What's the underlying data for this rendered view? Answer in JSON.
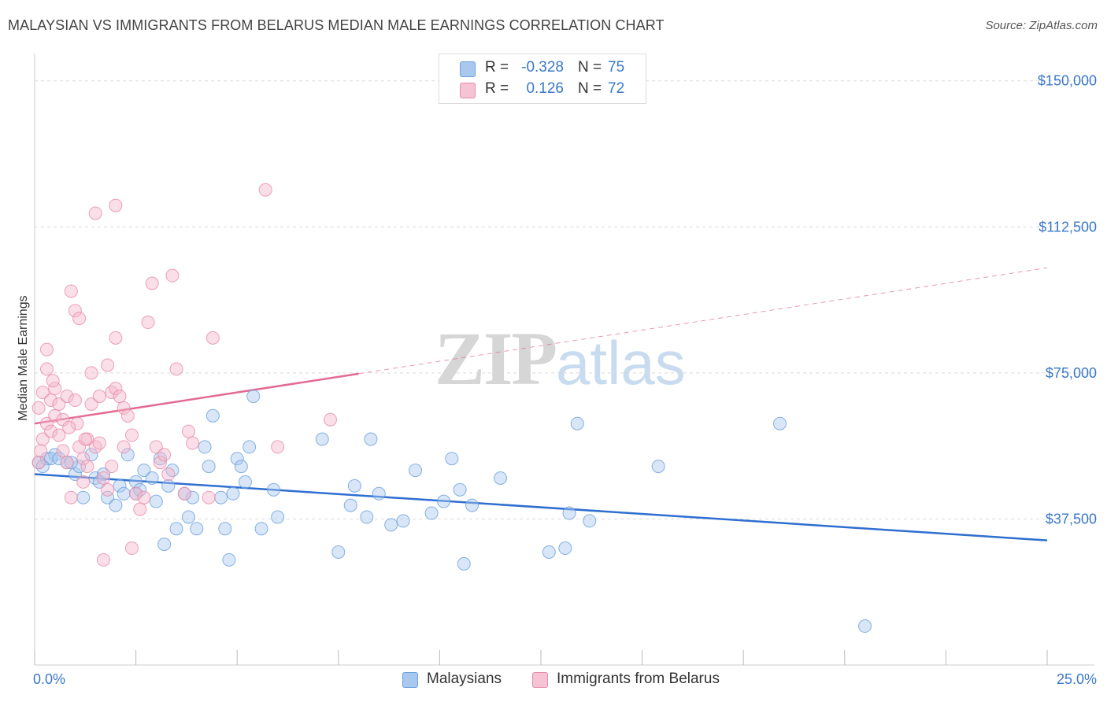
{
  "title": "MALAYSIAN VS IMMIGRANTS FROM BELARUS MEDIAN MALE EARNINGS CORRELATION CHART",
  "source": "Source: ZipAtlas.com",
  "watermark": {
    "zip": "ZIP",
    "atlas": "atlas"
  },
  "legend": {
    "rows": [
      {
        "r_label": "R =",
        "r_value": "-0.328",
        "n_label": "N =",
        "n_value": "75",
        "color": "#a9c8ee"
      },
      {
        "r_label": "R =",
        "r_value": "0.126",
        "n_label": "N =",
        "n_value": "72",
        "color": "#f5b8cb"
      }
    ]
  },
  "bottom_legend": [
    {
      "label": "Malaysians",
      "color": "#a9c8ee"
    },
    {
      "label": "Immigrants from Belarus",
      "color": "#f5b8cb"
    }
  ],
  "chart_data": {
    "type": "scatter",
    "title": "MALAYSIAN VS IMMIGRANTS FROM BELARUS MEDIAN MALE EARNINGS CORRELATION CHART",
    "xlabel": "",
    "ylabel": "Median Male Earnings",
    "xlim": [
      0,
      25
    ],
    "ylim": [
      0,
      155000
    ],
    "x_tick_labels": [
      {
        "value": 0,
        "label": "0.0%"
      },
      {
        "value": 25,
        "label": "25.0%"
      }
    ],
    "y_tick_labels": [
      {
        "value": 37500,
        "label": "$37,500"
      },
      {
        "value": 75000,
        "label": "$75,000"
      },
      {
        "value": 112500,
        "label": "$112,500"
      },
      {
        "value": 150000,
        "label": "$150,000"
      }
    ],
    "grid": true,
    "legend_position": "top-center",
    "series": [
      {
        "name": "Malaysians",
        "color": "#a9c8ee",
        "stroke": "#6a9fdd",
        "trend": {
          "x": [
            0,
            25
          ],
          "y": [
            49000,
            32000
          ],
          "color": "#2e6fd0",
          "dashed_from": null
        },
        "points": [
          [
            0.1,
            52000
          ],
          [
            0.3,
            53000
          ],
          [
            0.5,
            54000
          ],
          [
            0.4,
            53000
          ],
          [
            0.6,
            53000
          ],
          [
            0.8,
            52000
          ],
          [
            1.0,
            49000
          ],
          [
            1.1,
            51000
          ],
          [
            1.2,
            43000
          ],
          [
            1.4,
            54000
          ],
          [
            1.5,
            48000
          ],
          [
            1.7,
            49000
          ],
          [
            1.8,
            43000
          ],
          [
            2.0,
            41000
          ],
          [
            2.1,
            46000
          ],
          [
            2.2,
            44000
          ],
          [
            2.3,
            54000
          ],
          [
            2.5,
            44000
          ],
          [
            2.5,
            47000
          ],
          [
            2.6,
            45000
          ],
          [
            2.7,
            50000
          ],
          [
            2.9,
            48000
          ],
          [
            3.0,
            42000
          ],
          [
            3.1,
            53000
          ],
          [
            3.2,
            31000
          ],
          [
            3.3,
            46000
          ],
          [
            3.4,
            50000
          ],
          [
            3.5,
            35000
          ],
          [
            3.7,
            44000
          ],
          [
            3.8,
            38000
          ],
          [
            3.9,
            43000
          ],
          [
            4.0,
            35000
          ],
          [
            4.2,
            56000
          ],
          [
            4.3,
            51000
          ],
          [
            4.4,
            64000
          ],
          [
            4.6,
            43000
          ],
          [
            4.7,
            35000
          ],
          [
            4.8,
            27000
          ],
          [
            4.9,
            44000
          ],
          [
            5.0,
            53000
          ],
          [
            5.1,
            51000
          ],
          [
            5.2,
            47000
          ],
          [
            5.3,
            56000
          ],
          [
            5.4,
            69000
          ],
          [
            5.6,
            35000
          ],
          [
            5.9,
            45000
          ],
          [
            6.0,
            38000
          ],
          [
            7.1,
            58000
          ],
          [
            7.5,
            29000
          ],
          [
            7.8,
            41000
          ],
          [
            7.9,
            46000
          ],
          [
            8.2,
            38000
          ],
          [
            8.3,
            58000
          ],
          [
            8.5,
            44000
          ],
          [
            8.8,
            36000
          ],
          [
            9.1,
            37000
          ],
          [
            9.4,
            50000
          ],
          [
            9.8,
            39000
          ],
          [
            10.1,
            42000
          ],
          [
            10.3,
            53000
          ],
          [
            10.5,
            45000
          ],
          [
            10.6,
            26000
          ],
          [
            10.8,
            41000
          ],
          [
            11.5,
            48000
          ],
          [
            12.7,
            29000
          ],
          [
            13.1,
            30000
          ],
          [
            13.2,
            39000
          ],
          [
            13.4,
            62000
          ],
          [
            13.7,
            37000
          ],
          [
            15.4,
            51000
          ],
          [
            18.4,
            62000
          ],
          [
            20.5,
            10000
          ],
          [
            0.2,
            51000
          ],
          [
            0.9,
            52000
          ],
          [
            1.6,
            47000
          ]
        ]
      },
      {
        "name": "Immigrants from Belarus",
        "color": "#f5b8cb",
        "stroke": "#e88aa8",
        "trend": {
          "x": [
            0,
            25
          ],
          "y": [
            62000,
            102000
          ],
          "color": "#e36b91",
          "dashed_from": 8
        },
        "points": [
          [
            0.1,
            52000
          ],
          [
            0.1,
            66000
          ],
          [
            0.2,
            58000
          ],
          [
            0.2,
            70000
          ],
          [
            0.3,
            62000
          ],
          [
            0.3,
            81000
          ],
          [
            0.3,
            76000
          ],
          [
            0.4,
            68000
          ],
          [
            0.4,
            60000
          ],
          [
            0.5,
            71000
          ],
          [
            0.5,
            64000
          ],
          [
            0.6,
            59000
          ],
          [
            0.6,
            67000
          ],
          [
            0.7,
            55000
          ],
          [
            0.7,
            63000
          ],
          [
            0.8,
            52000
          ],
          [
            0.8,
            69000
          ],
          [
            0.9,
            96000
          ],
          [
            0.9,
            43000
          ],
          [
            1.0,
            91000
          ],
          [
            1.0,
            68000
          ],
          [
            1.1,
            56000
          ],
          [
            1.1,
            89000
          ],
          [
            1.2,
            53000
          ],
          [
            1.2,
            47000
          ],
          [
            1.3,
            58000
          ],
          [
            1.3,
            51000
          ],
          [
            1.4,
            75000
          ],
          [
            1.4,
            67000
          ],
          [
            1.5,
            56000
          ],
          [
            1.5,
            116000
          ],
          [
            1.6,
            57000
          ],
          [
            1.6,
            69000
          ],
          [
            1.7,
            27000
          ],
          [
            1.7,
            48000
          ],
          [
            1.8,
            77000
          ],
          [
            1.8,
            45000
          ],
          [
            1.9,
            70000
          ],
          [
            1.9,
            51000
          ],
          [
            2.0,
            71000
          ],
          [
            2.0,
            84000
          ],
          [
            2.0,
            118000
          ],
          [
            2.1,
            69000
          ],
          [
            2.2,
            66000
          ],
          [
            2.2,
            56000
          ],
          [
            2.3,
            64000
          ],
          [
            2.4,
            59000
          ],
          [
            2.4,
            30000
          ],
          [
            2.5,
            44000
          ],
          [
            2.6,
            40000
          ],
          [
            2.7,
            43000
          ],
          [
            2.8,
            88000
          ],
          [
            2.9,
            98000
          ],
          [
            3.0,
            56000
          ],
          [
            3.1,
            52000
          ],
          [
            3.2,
            54000
          ],
          [
            3.3,
            49000
          ],
          [
            3.4,
            100000
          ],
          [
            3.5,
            76000
          ],
          [
            3.7,
            44000
          ],
          [
            3.8,
            60000
          ],
          [
            3.9,
            57000
          ],
          [
            4.3,
            43000
          ],
          [
            4.4,
            84000
          ],
          [
            5.7,
            122000
          ],
          [
            6.0,
            56000
          ],
          [
            7.3,
            63000
          ],
          [
            0.15,
            55000
          ],
          [
            0.45,
            73000
          ],
          [
            1.05,
            62000
          ],
          [
            1.25,
            58000
          ],
          [
            0.85,
            61000
          ]
        ]
      }
    ]
  }
}
